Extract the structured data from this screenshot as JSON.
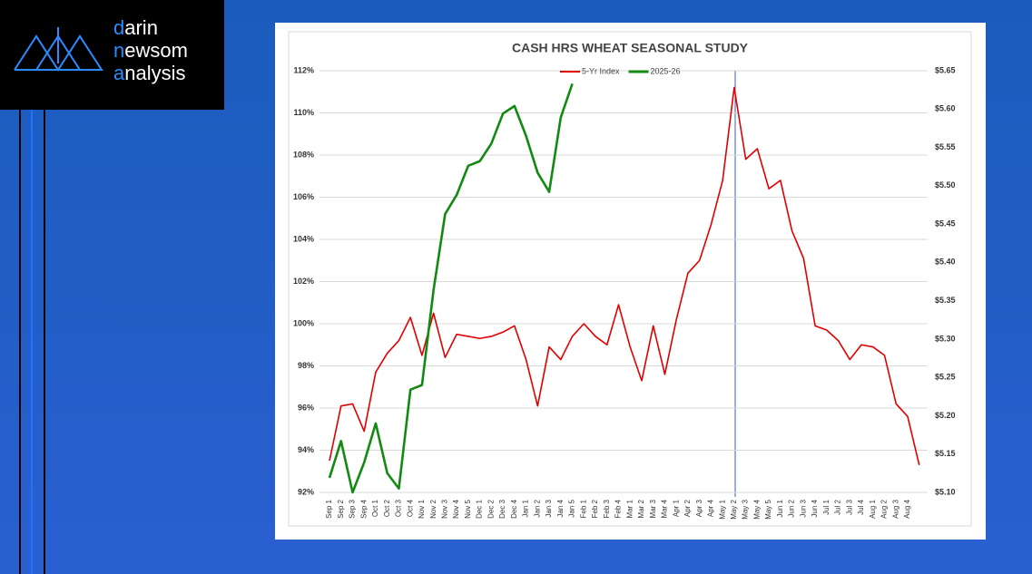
{
  "logo": [
    "darin",
    "newsom",
    "analysis"
  ],
  "chart_data": {
    "type": "line",
    "title": "CASH HRS WHEAT SEASONAL STUDY",
    "categories": [
      "Sep 1",
      "Sep 2",
      "Sep 3",
      "Sep 4",
      "Oct 1",
      "Oct 2",
      "Oct 3",
      "Oct 4",
      "Nov 1",
      "Nov 2",
      "Nov 3",
      "Nov 4",
      "Nov 5",
      "Dec 1",
      "Dec 2",
      "Dec 3",
      "Dec 4",
      "Jan 1",
      "Jan 2",
      "Jan 3",
      "Jan 4",
      "Jan 5",
      "Feb 1",
      "Feb 2",
      "Feb 3",
      "Feb 4",
      "Mar 1",
      "Mar 2",
      "Mar 3",
      "Mar 4",
      "Apr 1",
      "Apr 2",
      "Apr 3",
      "Apr 4",
      "May 1",
      "May 2",
      "May 3",
      "May 4",
      "May 5",
      "Jun 1",
      "Jun 2",
      "Jun 3",
      "Jun 4",
      "Jul 1",
      "Jul 2",
      "Jul 3",
      "Jul 4",
      "Aug 1",
      "Aug 2",
      "Aug 3",
      "Aug 4",
      null
    ],
    "series": [
      {
        "name": "5-Yr Index",
        "color": "#e00000",
        "values": [
          93.5,
          96.1,
          96.2,
          94.9,
          97.7,
          98.6,
          99.2,
          100.3,
          98.5,
          100.5,
          98.4,
          99.5,
          99.4,
          99.3,
          99.4,
          99.6,
          99.9,
          98.3,
          96.1,
          98.9,
          98.3,
          99.4,
          100.0,
          99.4,
          99.0,
          100.9,
          98.9,
          97.3,
          99.9,
          97.6,
          100.2,
          102.4,
          103.0,
          104.7,
          106.8,
          111.2,
          107.8,
          108.3,
          106.4,
          106.8,
          104.4,
          103.1,
          99.9,
          99.7,
          99.2,
          98.3,
          99.0,
          98.9,
          98.5,
          96.2,
          95.6,
          93.3
        ]
      },
      {
        "name": "2025-26",
        "color": "#128a12",
        "axis": "y2",
        "values": [
          5.119,
          5.167,
          5.1,
          5.139,
          5.19,
          5.125,
          5.105,
          5.234,
          5.24,
          5.364,
          5.463,
          5.488,
          5.526,
          5.532,
          5.555,
          5.594,
          5.604,
          5.565,
          5.517,
          5.492,
          5.589,
          5.633,
          null,
          null,
          null,
          null,
          null,
          null,
          null,
          null,
          null,
          null,
          null,
          null,
          null,
          null,
          null,
          null,
          null,
          null,
          null,
          null,
          null,
          null,
          null,
          null,
          null,
          null,
          null,
          null,
          null,
          null
        ]
      }
    ],
    "ylim": [
      92,
      112
    ],
    "yticks": [
      {
        "value": 92,
        "label": "92%"
      },
      {
        "value": 94,
        "label": "94%"
      },
      {
        "value": 96,
        "label": "96%"
      },
      {
        "value": 98,
        "label": "98%"
      },
      {
        "value": 100,
        "label": "100%"
      },
      {
        "value": 102,
        "label": "102%"
      },
      {
        "value": 104,
        "label": "104%"
      },
      {
        "value": 106,
        "label": "106%"
      },
      {
        "value": 108,
        "label": "108%"
      },
      {
        "value": 110,
        "label": "110%"
      },
      {
        "value": 112,
        "label": "112%"
      }
    ],
    "y2lim": [
      5.1,
      5.65
    ],
    "y2ticks": [
      {
        "value": 5.1,
        "label": "$5.10"
      },
      {
        "value": 5.15,
        "label": "$5.15"
      },
      {
        "value": 5.2,
        "label": "$5.20"
      },
      {
        "value": 5.25,
        "label": "$5.25"
      },
      {
        "value": 5.3,
        "label": "$5.30"
      },
      {
        "value": 5.35,
        "label": "$5.35"
      },
      {
        "value": 5.4,
        "label": "$5.40"
      },
      {
        "value": 5.45,
        "label": "$5.45"
      },
      {
        "value": 5.5,
        "label": "$5.50"
      },
      {
        "value": 5.55,
        "label": "$5.55"
      },
      {
        "value": 5.6,
        "label": "$5.60"
      },
      {
        "value": 5.65,
        "label": "$5.65"
      }
    ],
    "grid": true,
    "legend": "top"
  }
}
